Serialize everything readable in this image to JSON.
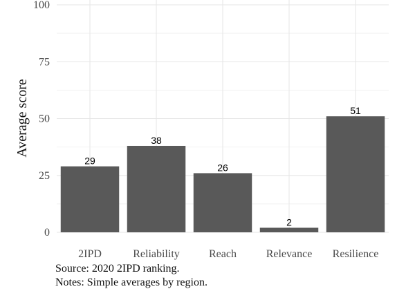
{
  "chart_data": {
    "type": "bar",
    "categories": [
      "2IPD",
      "Reliability",
      "Reach",
      "Relevance",
      "Resilience"
    ],
    "values": [
      29,
      38,
      26,
      2,
      51
    ],
    "data_labels": [
      "29",
      "38",
      "26",
      "2",
      "51"
    ],
    "xlabel": "",
    "ylabel": "Average score",
    "ylim": [
      0,
      100
    ],
    "yticks": [
      0,
      25,
      50,
      75,
      100
    ],
    "grid": true,
    "legend": "none",
    "bar_color": "#595959"
  },
  "captions": {
    "source": "Source: 2020 2IPD ranking.",
    "notes": "Notes: Simple averages by region."
  }
}
